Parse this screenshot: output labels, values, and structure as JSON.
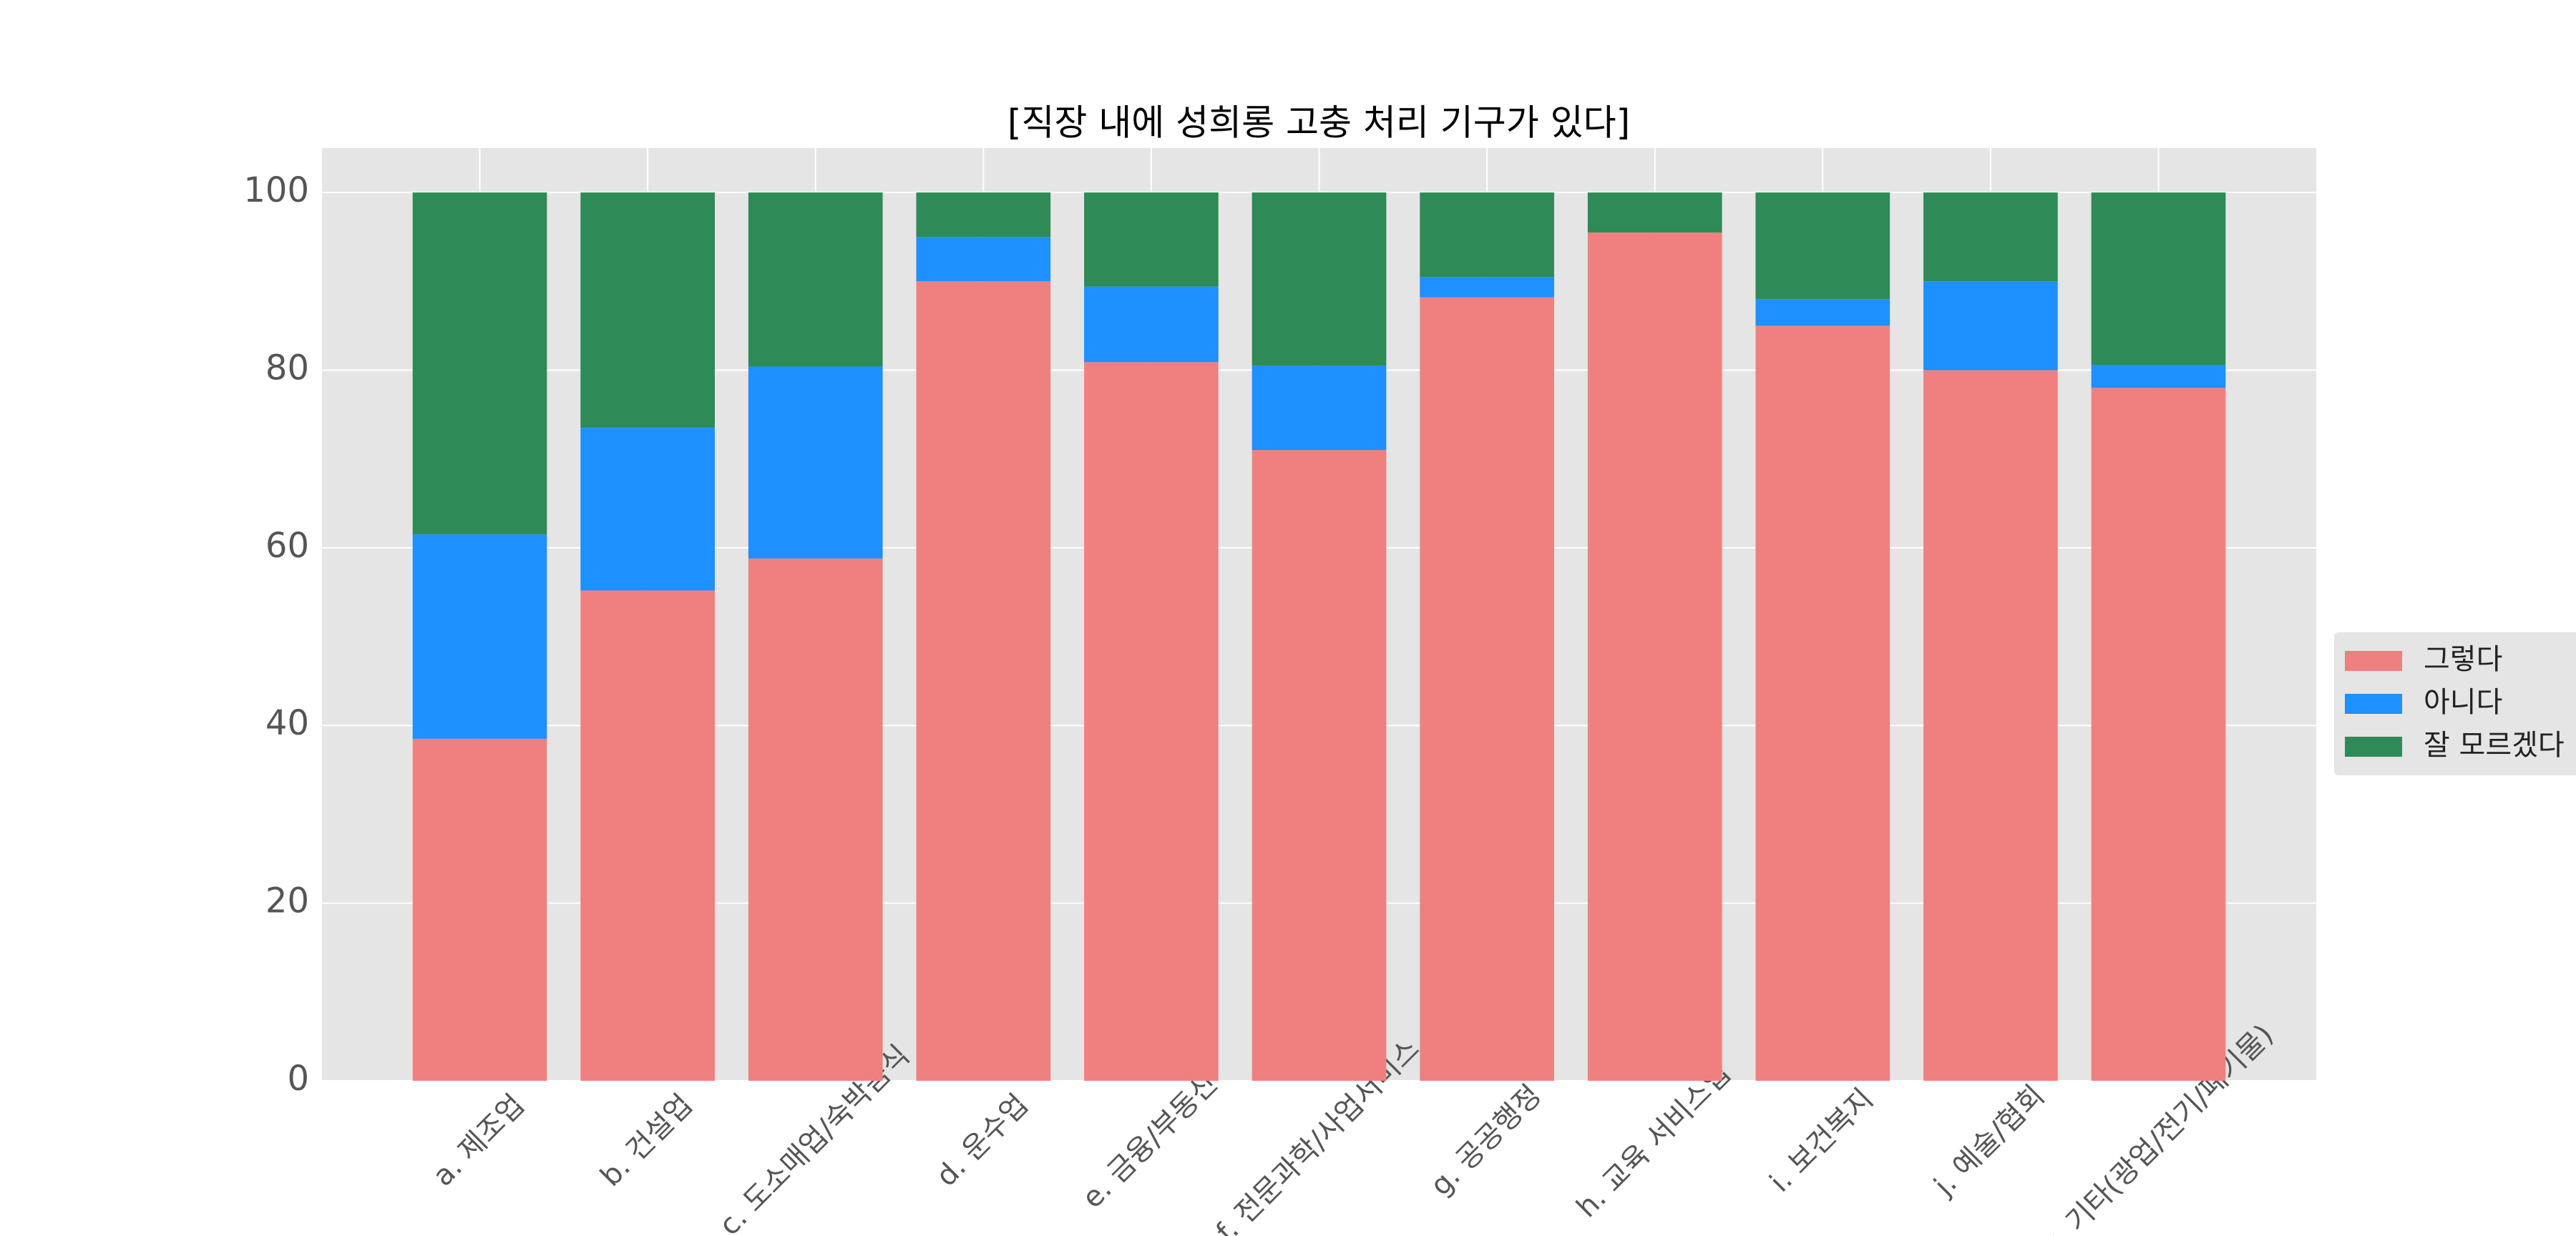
{
  "chart_data": {
    "type": "stacked_bar",
    "title": "[직장 내에 성희롱 고충 처리 기구가 있다]",
    "categories": [
      "a. 제조업",
      "b. 건설업",
      "c. 도소매업/숙박음식",
      "d. 운수업",
      "e. 금융/부동산",
      "f. 전문과학/사업서비스",
      "g. 공공행정",
      "h. 교육 서비스업",
      "i. 보건복지",
      "j. 예술/협회",
      "k. 기타(광업/전기/폐기물)"
    ],
    "series": [
      {
        "name": "그렇다",
        "color": "#f08080",
        "values": [
          38.5,
          55.2,
          58.8,
          90,
          80.9,
          71,
          88.2,
          95.5,
          85,
          80,
          78
        ]
      },
      {
        "name": "아니다",
        "color": "#1e90ff",
        "values": [
          23,
          18.3,
          21.6,
          5,
          8.5,
          9.5,
          2.3,
          0,
          3,
          10,
          2.6
        ]
      },
      {
        "name": "잘 모르겠다",
        "color": "#2e8b57",
        "values": [
          38.5,
          26.5,
          19.6,
          5,
          10.6,
          19.5,
          9.5,
          4.5,
          12,
          10,
          19.4
        ]
      }
    ],
    "ylim": [
      0,
      105
    ],
    "yticks": [
      0,
      20,
      40,
      60,
      80,
      100
    ],
    "grid": true,
    "legend": "right"
  }
}
